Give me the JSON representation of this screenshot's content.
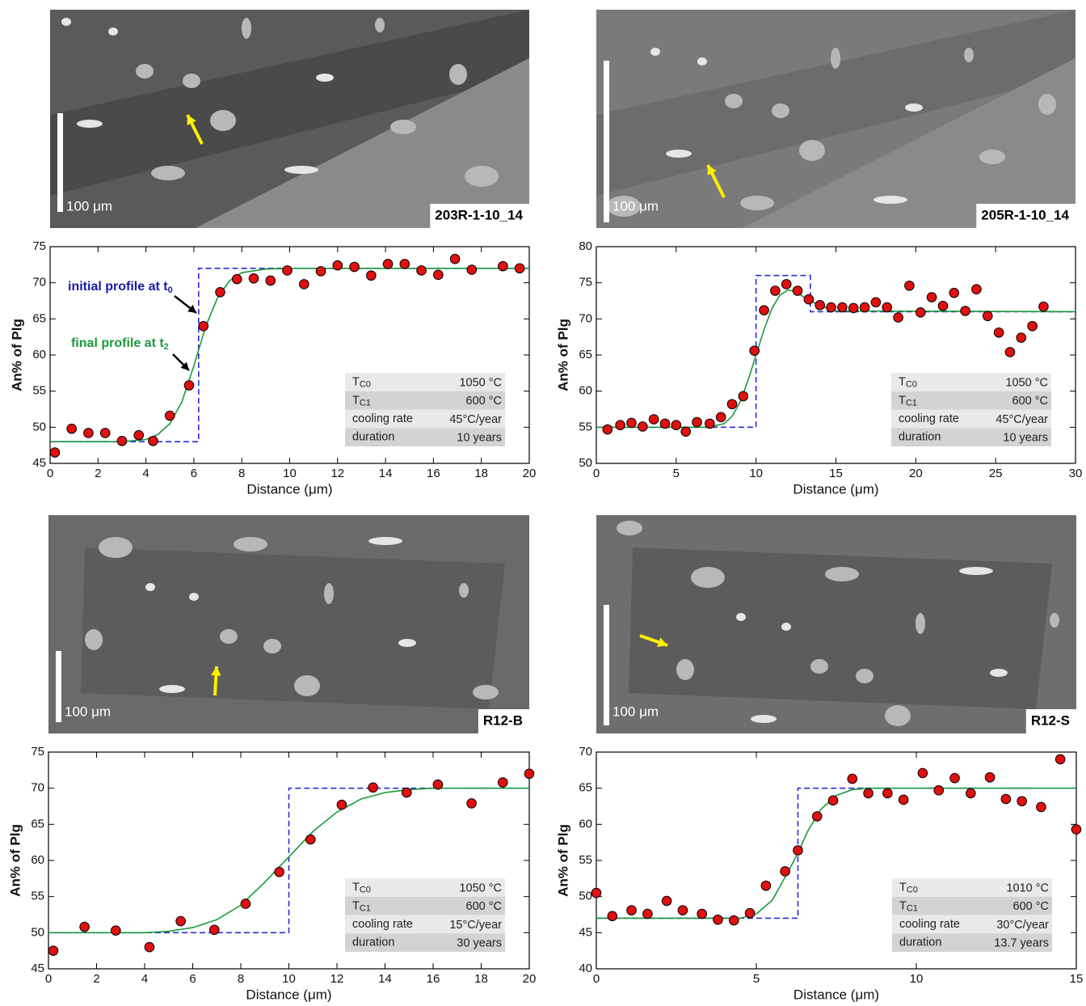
{
  "images": [
    {
      "label": "203R-1-10_14",
      "scale_label": "100 μm"
    },
    {
      "label": "205R-1-10_14",
      "scale_label": "100 μm"
    },
    {
      "label": "R12-B",
      "scale_label": "100 μm"
    },
    {
      "label": "R12-S",
      "scale_label": "100 μm"
    }
  ],
  "chart_data": [
    {
      "type": "scatter",
      "xlabel": "Distance (μm)",
      "ylabel": "An% of Plg",
      "xlim": [
        0,
        20
      ],
      "ylim": [
        45,
        75
      ],
      "xticks": [
        0,
        2,
        4,
        6,
        8,
        10,
        12,
        14,
        16,
        18,
        20
      ],
      "yticks": [
        45,
        50,
        55,
        60,
        65,
        70,
        75
      ],
      "series": [
        {
          "style": "dashed",
          "color": "#2b2bd6",
          "x": [
            0,
            6.2,
            6.2,
            20
          ],
          "values": [
            48,
            48,
            72,
            72
          ]
        },
        {
          "style": "line",
          "color": "#1a9a3c",
          "x": [
            0,
            3,
            4,
            4.5,
            5,
            5.5,
            6,
            6.5,
            7,
            7.5,
            8,
            9,
            10,
            20
          ],
          "values": [
            48,
            48,
            48.3,
            49,
            50.5,
            53.5,
            58.5,
            64,
            68,
            70.3,
            71.4,
            71.9,
            72,
            72
          ]
        },
        {
          "style": "markers",
          "color": "#e01010",
          "x": [
            0.2,
            0.9,
            1.6,
            2.3,
            3,
            3.7,
            4.3,
            5,
            5.8,
            6.4,
            7.1,
            7.8,
            8.5,
            9.2,
            9.9,
            10.6,
            11.3,
            12,
            12.7,
            13.4,
            14.1,
            14.8,
            15.5,
            16.2,
            16.9,
            17.6,
            18.9,
            19.6
          ],
          "values": [
            46.5,
            49.8,
            49.2,
            49.2,
            48.1,
            48.9,
            48.1,
            51.6,
            55.8,
            64,
            68.7,
            70.5,
            70.6,
            70.3,
            71.7,
            69.8,
            71.6,
            72.4,
            72.2,
            71,
            72.6,
            72.6,
            71.7,
            71.1,
            73.3,
            71.8,
            72.3,
            72
          ]
        }
      ],
      "annotations": [
        {
          "text": "initial profile at t",
          "sub": "0",
          "color": "#1a1aa6"
        },
        {
          "text": "final profile at t",
          "sub": "2",
          "color": "#1a9a3c"
        }
      ],
      "table": [
        {
          "label": "T",
          "sub": "C0",
          "value": "1050 °C"
        },
        {
          "label": "T",
          "sub": "C1",
          "value": "600 °C"
        },
        {
          "label": "cooling rate",
          "value": "45°C/year"
        },
        {
          "label": "duration",
          "value": "10 years"
        }
      ]
    },
    {
      "type": "scatter",
      "xlabel": "Distance (μm)",
      "ylabel": "An% of Plg",
      "xlim": [
        0,
        30
      ],
      "ylim": [
        50,
        80
      ],
      "xticks": [
        0,
        5,
        10,
        15,
        20,
        25,
        30
      ],
      "yticks": [
        50,
        55,
        60,
        65,
        70,
        75,
        80
      ],
      "series": [
        {
          "style": "dashed",
          "color": "#2b2bd6",
          "x": [
            0,
            10,
            10,
            13.4,
            13.4,
            30
          ],
          "values": [
            55,
            55,
            76,
            76,
            71,
            71
          ]
        },
        {
          "style": "line",
          "color": "#1a9a3c",
          "x": [
            0,
            7,
            8,
            8.5,
            9,
            9.5,
            10,
            10.5,
            11,
            11.5,
            12,
            12.5,
            13,
            14,
            15,
            30
          ],
          "values": [
            55,
            55,
            55.5,
            56.5,
            58.5,
            61.5,
            65,
            68.5,
            71.5,
            73.3,
            74,
            73.8,
            73,
            71.8,
            71.1,
            71
          ]
        },
        {
          "style": "markers",
          "color": "#e01010",
          "x": [
            0.7,
            1.5,
            2.2,
            2.9,
            3.6,
            4.3,
            5,
            5.6,
            6.3,
            7.1,
            7.8,
            8.5,
            9.2,
            9.9,
            10.5,
            11.2,
            11.9,
            12.6,
            13.3,
            14,
            14.7,
            15.4,
            16.1,
            16.8,
            17.5,
            18.2,
            18.9,
            19.6,
            20.3,
            21,
            21.7,
            22.4,
            23.1,
            23.8,
            24.5,
            25.2,
            25.9,
            26.6,
            27.3,
            28
          ],
          "values": [
            54.7,
            55.3,
            55.6,
            55.1,
            56.1,
            55.5,
            55.3,
            54.4,
            55.7,
            55.5,
            56.4,
            58.2,
            59.3,
            65.6,
            71.2,
            73.9,
            74.8,
            73.9,
            72.7,
            71.9,
            71.6,
            71.6,
            71.5,
            71.6,
            72.3,
            71.6,
            70.2,
            74.6,
            70.9,
            73,
            71.8,
            73.6,
            71.1,
            74.1,
            70.4,
            68.1,
            65.4,
            67.4,
            69,
            71.7
          ]
        }
      ],
      "table": [
        {
          "label": "T",
          "sub": "C0",
          "value": "1050 °C"
        },
        {
          "label": "T",
          "sub": "C1",
          "value": "600 °C"
        },
        {
          "label": "cooling rate",
          "value": "45°C/year"
        },
        {
          "label": "duration",
          "value": "10 years"
        }
      ]
    },
    {
      "type": "scatter",
      "xlabel": "Distance (μm)",
      "ylabel": "An% of Plg",
      "xlim": [
        0,
        20
      ],
      "ylim": [
        45,
        75
      ],
      "xticks": [
        0,
        2,
        4,
        6,
        8,
        10,
        12,
        14,
        16,
        18,
        20
      ],
      "yticks": [
        45,
        50,
        55,
        60,
        65,
        70,
        75
      ],
      "series": [
        {
          "style": "dashed",
          "color": "#2b2bd6",
          "x": [
            0,
            10,
            10,
            20
          ],
          "values": [
            50,
            50,
            70,
            70
          ]
        },
        {
          "style": "line",
          "color": "#1a9a3c",
          "x": [
            0,
            4,
            5,
            6,
            7,
            8,
            9,
            10,
            11,
            12,
            13,
            14,
            15,
            16,
            20
          ],
          "values": [
            50,
            50,
            50.2,
            50.7,
            51.8,
            53.8,
            57,
            60.5,
            64,
            66.7,
            68.5,
            69.4,
            69.8,
            70,
            70
          ]
        },
        {
          "style": "markers",
          "color": "#e01010",
          "x": [
            0.2,
            1.5,
            2.8,
            4.2,
            5.5,
            6.9,
            8.2,
            9.6,
            10.9,
            12.2,
            13.5,
            14.9,
            16.2,
            17.6,
            18.9,
            20
          ],
          "values": [
            47.5,
            50.8,
            50.3,
            48,
            51.6,
            50.4,
            54,
            58.4,
            62.9,
            67.7,
            70.1,
            69.4,
            70.5,
            67.9,
            70.8,
            72
          ]
        }
      ],
      "table": [
        {
          "label": "T",
          "sub": "C0",
          "value": "1050 °C"
        },
        {
          "label": "T",
          "sub": "C1",
          "value": "600 °C"
        },
        {
          "label": "cooling rate",
          "value": "15°C/year"
        },
        {
          "label": "duration",
          "value": "30 years"
        }
      ]
    },
    {
      "type": "scatter",
      "xlabel": "Distance (μm)",
      "ylabel": "An% of Plg",
      "xlim": [
        0,
        15
      ],
      "ylim": [
        40,
        70
      ],
      "xticks": [
        0,
        5,
        10,
        15
      ],
      "yticks": [
        40,
        45,
        50,
        55,
        60,
        65,
        70
      ],
      "series": [
        {
          "style": "dashed",
          "color": "#2b2bd6",
          "x": [
            0,
            6.3,
            6.3,
            15
          ],
          "values": [
            47,
            47,
            65,
            65
          ]
        },
        {
          "style": "line",
          "color": "#1a9a3c",
          "x": [
            0,
            4.5,
            5,
            5.5,
            6,
            6.3,
            6.6,
            7,
            7.5,
            8,
            8.5,
            15
          ],
          "values": [
            47,
            47,
            47.6,
            49.5,
            53.5,
            56,
            59,
            62,
            64,
            64.8,
            65,
            65
          ]
        },
        {
          "style": "markers",
          "color": "#e01010",
          "x": [
            0,
            0.5,
            1.1,
            1.6,
            2.2,
            2.7,
            3.3,
            3.8,
            4.3,
            4.8,
            5.3,
            5.9,
            6.3,
            6.9,
            7.4,
            8,
            8.5,
            9.1,
            9.6,
            10.2,
            10.7,
            11.2,
            11.7,
            12.3,
            12.8,
            13.3,
            13.9,
            14.5,
            15
          ],
          "values": [
            50.5,
            47.3,
            48.1,
            47.6,
            49.4,
            48.1,
            47.6,
            46.8,
            46.7,
            47.7,
            51.5,
            53.5,
            56.4,
            61.1,
            63.3,
            66.3,
            64.3,
            64.3,
            63.4,
            67.1,
            64.7,
            66.4,
            64.3,
            66.5,
            63.5,
            63.2,
            62.4,
            69,
            59.3
          ]
        }
      ],
      "table": [
        {
          "label": "T",
          "sub": "C0",
          "value": "1010 °C"
        },
        {
          "label": "T",
          "sub": "C1",
          "value": "600 °C"
        },
        {
          "label": "cooling rate",
          "value": "30°C/year"
        },
        {
          "label": "duration",
          "value": "13.7 years"
        }
      ]
    }
  ]
}
